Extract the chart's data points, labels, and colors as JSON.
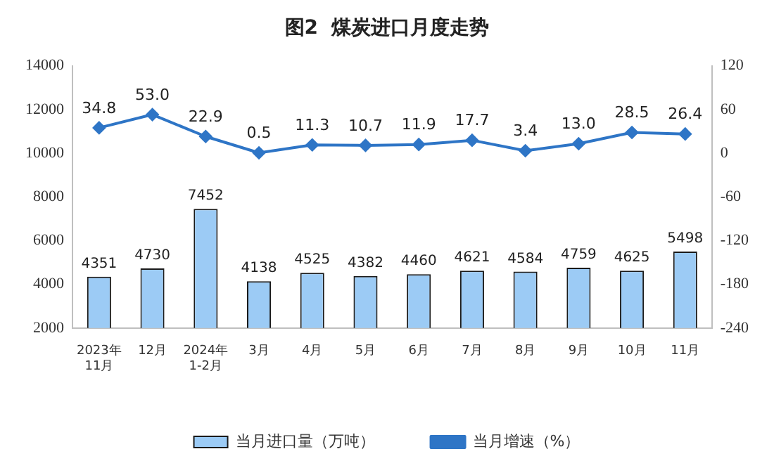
{
  "chart_data": {
    "type": "bar",
    "title": "图2  煤炭进口月度走势",
    "categories": [
      "2023年\n11月",
      "12月",
      "2024年\n1-2月",
      "3月",
      "4月",
      "5月",
      "6月",
      "7月",
      "8月",
      "9月",
      "10月",
      "11月"
    ],
    "series": [
      {
        "name": "当月进口量（万吨）",
        "color": "#9ccbf5",
        "values": [
          4351,
          4730,
          7452,
          4138,
          4525,
          4382,
          4460,
          4621,
          4584,
          4759,
          4625,
          5498
        ],
        "value_labels": [
          "4351",
          "4730",
          "7452",
          "4138",
          "4525",
          "4382",
          "4460",
          "4621",
          "4584",
          "4759",
          "4625",
          "5498"
        ]
      },
      {
        "name": "当月增速（%）",
        "type": "line",
        "axis": "y2",
        "color": "#2e75c6",
        "marker": "diamond",
        "values": [
          34.8,
          53.0,
          22.9,
          0.5,
          11.3,
          10.7,
          11.9,
          17.7,
          3.4,
          13.0,
          28.5,
          26.4
        ],
        "value_labels": [
          "34.8",
          "53.0",
          "22.9",
          "0.5",
          "11.3",
          "10.7",
          "11.9",
          "17.7",
          "3.4",
          "13.0",
          "28.5",
          "26.4"
        ]
      }
    ],
    "ylim": [
      2000,
      14000
    ],
    "yticks": [
      2000,
      4000,
      6000,
      8000,
      10000,
      12000,
      14000
    ],
    "y2lim": [
      -240,
      120
    ],
    "y2ticks": [
      -240,
      -180,
      -120,
      -60,
      0,
      60,
      120
    ],
    "grid": false,
    "legend": "bottom"
  }
}
